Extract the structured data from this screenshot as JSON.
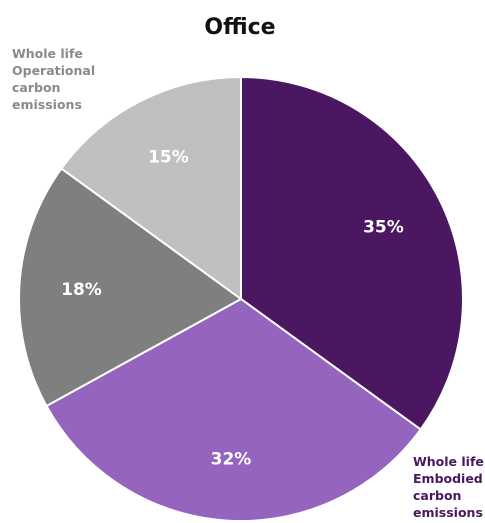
{
  "chart_data": {
    "type": "pie",
    "title": "Office",
    "slices": [
      {
        "label": "35%",
        "value": 35,
        "color": "#4a1760"
      },
      {
        "label": "32%",
        "value": 32,
        "color": "#9564bf"
      },
      {
        "label": "18%",
        "value": 18,
        "color": "#7f7f7f"
      },
      {
        "label": "15%",
        "value": 15,
        "color": "#c0c0c0"
      }
    ],
    "annotations": [
      {
        "lines": [
          "Whole life",
          "Operational",
          "carbon",
          "emissions"
        ],
        "color": "#8a8a8a"
      },
      {
        "lines": [
          "Whole life",
          "Embodied",
          "carbon",
          "emissions"
        ],
        "color": "#4a1760"
      }
    ]
  }
}
